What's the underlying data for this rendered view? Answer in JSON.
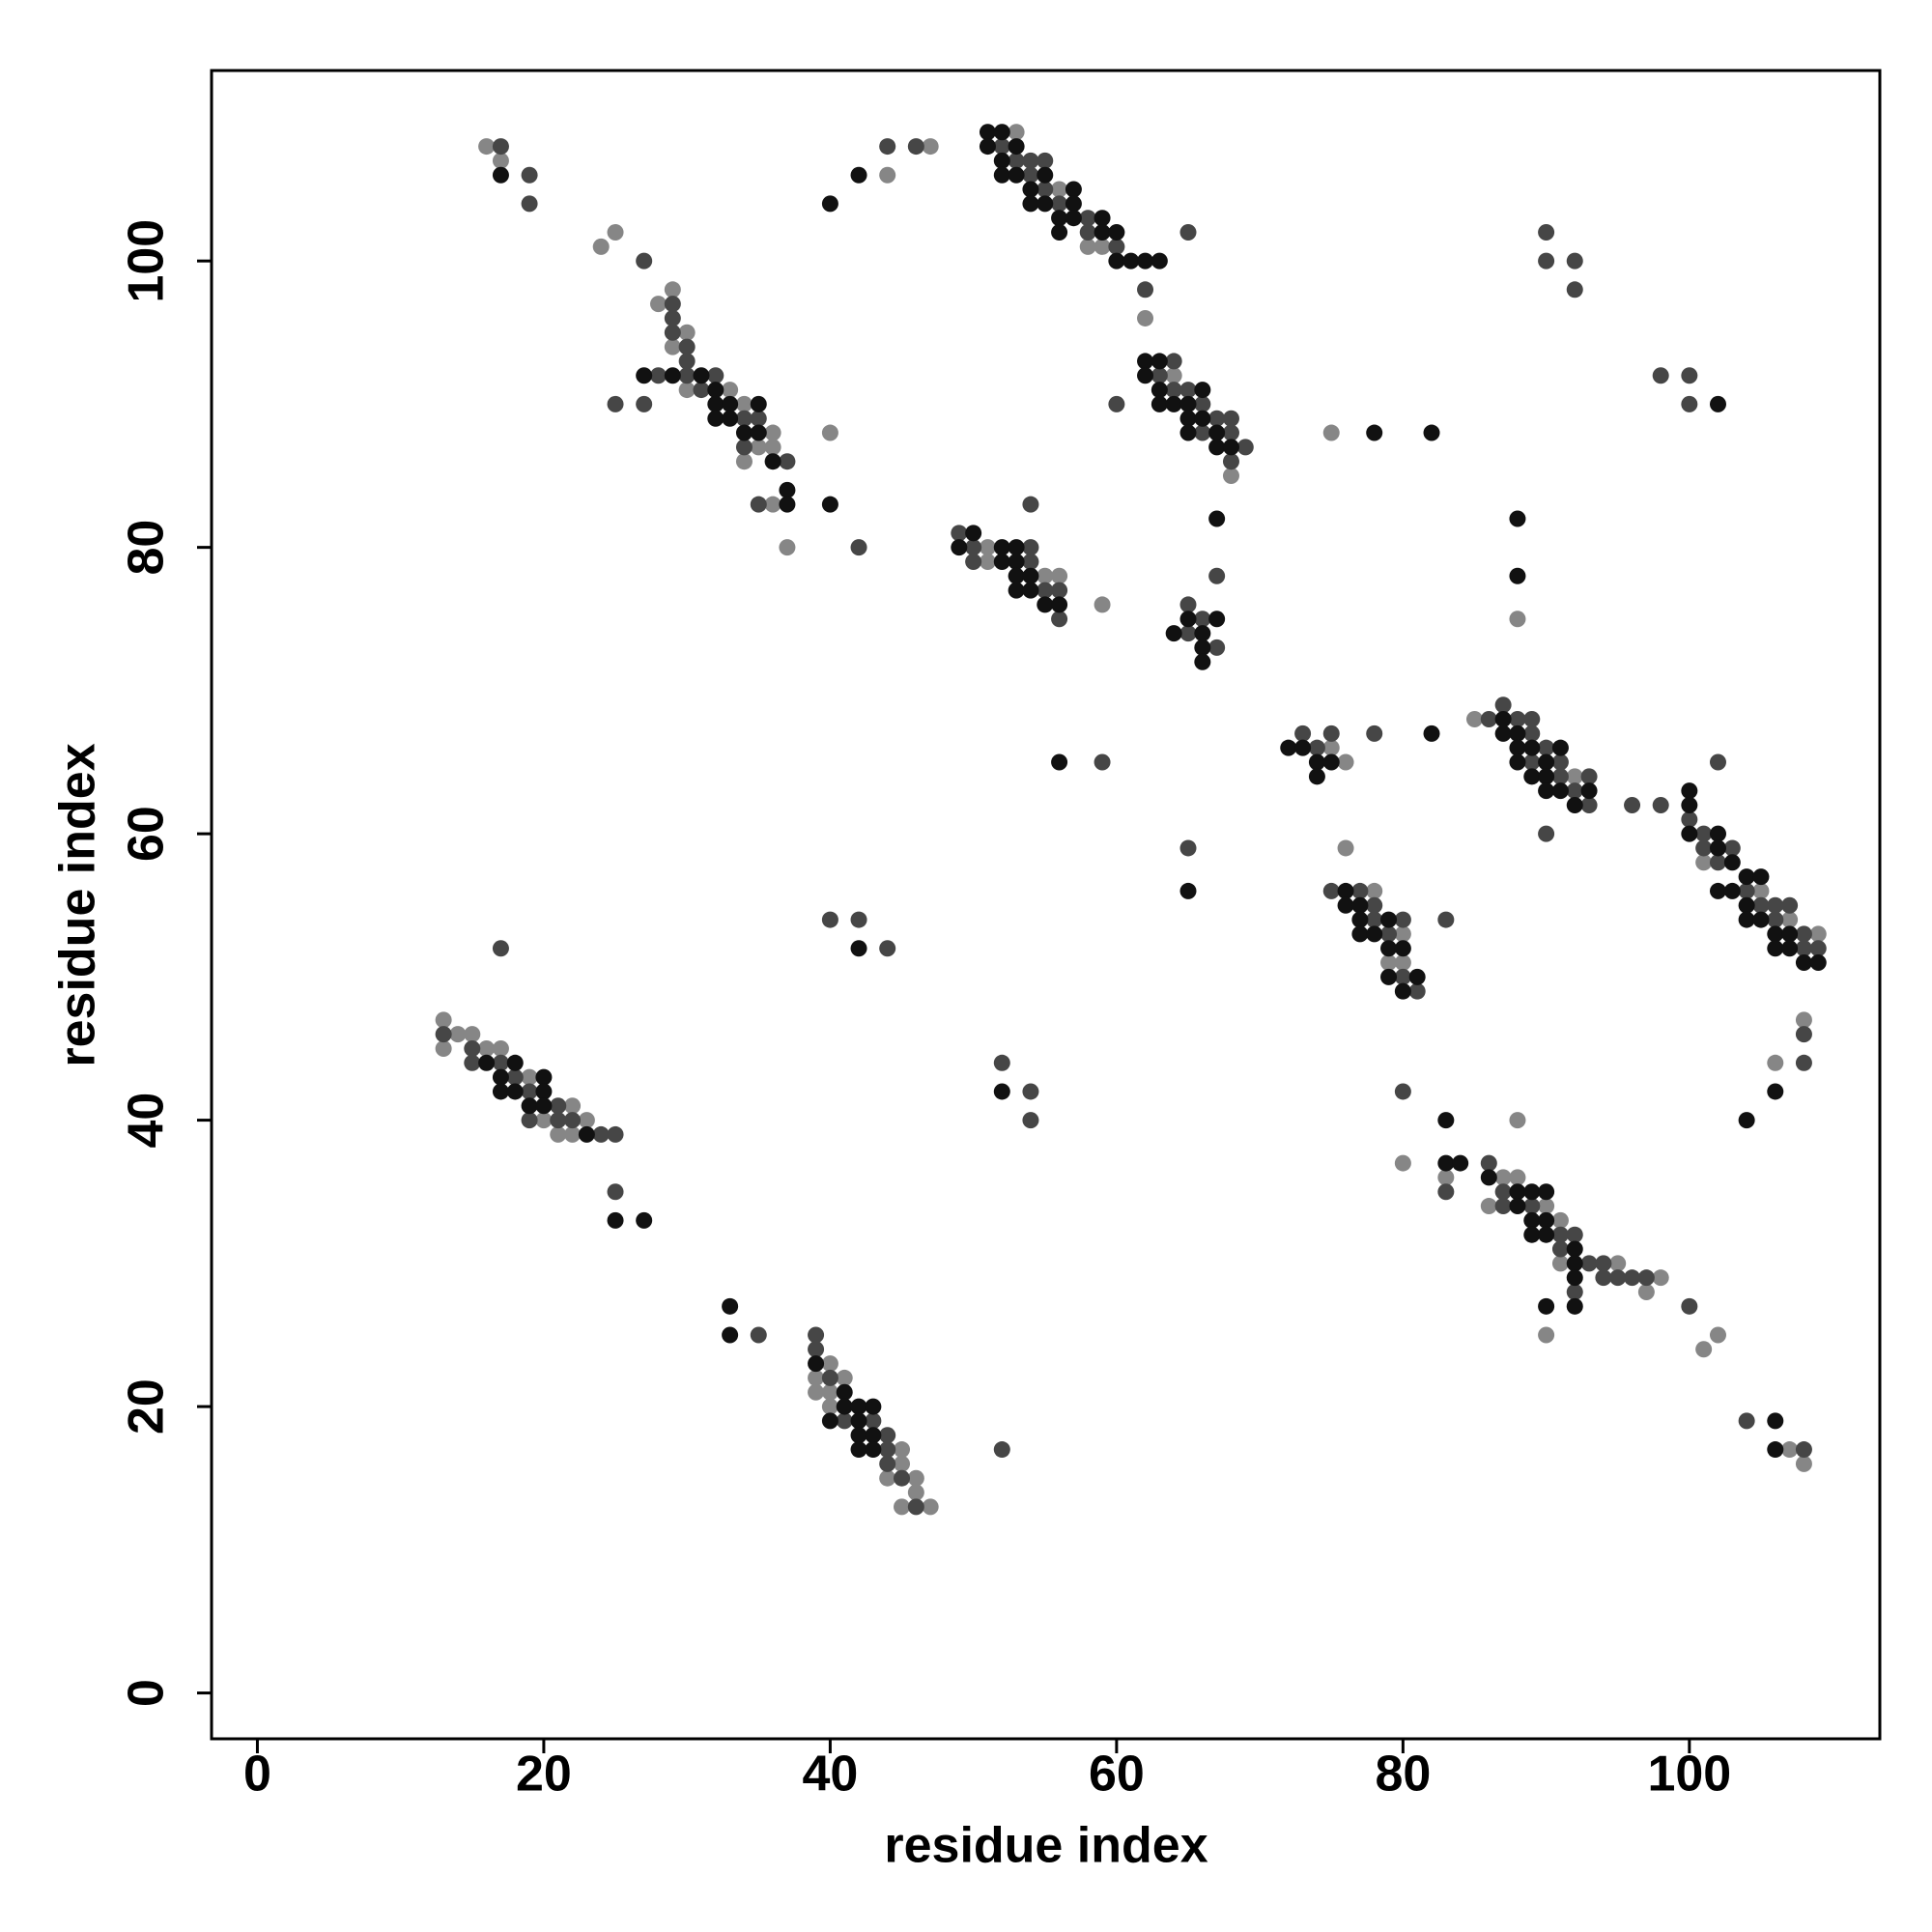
{
  "chart_data": {
    "type": "scatter",
    "x_label": "residue index",
    "y_label": "residue index",
    "xlim": [
      -3.2,
      113.3
    ],
    "ylim": [
      -3.2,
      113.3
    ],
    "xticks": [
      0,
      20,
      40,
      60,
      80,
      100
    ],
    "yticks": [
      0,
      20,
      40,
      60,
      80,
      100
    ],
    "grid": false,
    "series": [
      {
        "color": "#868686",
        "x": [
          16,
          17,
          24,
          25,
          28,
          29,
          30,
          29,
          30,
          33,
          34,
          36,
          35,
          36,
          34,
          36,
          37,
          40,
          44,
          47,
          53,
          56,
          58,
          59,
          62,
          64,
          68,
          75,
          51,
          51,
          55,
          56,
          59,
          75,
          76,
          85,
          92,
          101,
          105,
          107,
          109,
          106,
          108,
          76,
          78,
          80,
          79,
          80,
          13,
          14,
          15,
          13,
          16,
          17,
          19,
          22,
          20,
          23,
          21,
          22,
          40,
          39,
          41,
          39,
          40,
          40,
          45,
          45,
          44,
          46,
          46,
          45,
          47,
          88,
          80,
          83,
          87,
          88,
          86,
          90,
          91,
          91,
          95,
          98,
          97,
          90,
          101,
          102,
          107,
          108,
          88
        ],
        "y": [
          108,
          107,
          101,
          102,
          97,
          98,
          95,
          94,
          91,
          91,
          90,
          88,
          87,
          87,
          86,
          83,
          80,
          88,
          106,
          108,
          109,
          105,
          101,
          101,
          96,
          92,
          85,
          88,
          80,
          79,
          78,
          78,
          76,
          66,
          65,
          68,
          64,
          58,
          56,
          54,
          53,
          44,
          47,
          59,
          56,
          53,
          51,
          51,
          47,
          46,
          46,
          45,
          45,
          45,
          43,
          41,
          40,
          40,
          39,
          39,
          23,
          22,
          22,
          21,
          21,
          20,
          17,
          16,
          15,
          15,
          14,
          13,
          13,
          40,
          37,
          36,
          36,
          36,
          34,
          34,
          33,
          30,
          30,
          29,
          28,
          25,
          24,
          25,
          17,
          16,
          75
        ]
      },
      {
        "color": "#464646",
        "x": [
          17,
          19,
          19,
          27,
          29,
          29,
          29,
          30,
          30,
          28,
          30,
          32,
          31,
          25,
          27,
          34,
          35,
          34,
          37,
          35,
          42,
          44,
          46,
          52,
          53,
          54,
          55,
          54,
          55,
          56,
          58,
          58,
          60,
          65,
          62,
          64,
          63,
          64,
          65,
          66,
          60,
          67,
          68,
          66,
          68,
          69,
          68,
          49,
          50,
          54,
          50,
          54,
          55,
          56,
          56,
          54,
          65,
          67,
          66,
          65,
          67,
          73,
          74,
          75,
          78,
          59,
          86,
          87,
          88,
          89,
          89,
          90,
          89,
          91,
          91,
          93,
          92,
          93,
          90,
          96,
          98,
          100,
          102,
          101,
          101,
          103,
          102,
          104,
          105,
          106,
          107,
          106,
          108,
          108,
          109,
          108,
          108,
          75,
          77,
          78,
          78,
          80,
          79,
          80,
          81,
          83,
          65,
          13,
          15,
          15,
          17,
          18,
          19,
          21,
          19,
          21,
          22,
          24,
          25,
          25,
          17,
          40,
          42,
          44,
          52,
          54,
          54,
          35,
          39,
          39,
          40,
          41,
          43,
          44,
          44,
          44,
          45,
          46,
          52,
          80,
          83,
          86,
          87,
          87,
          89,
          91,
          92,
          91,
          93,
          94,
          94,
          95,
          96,
          97,
          92,
          100,
          104,
          108,
          90,
          90,
          92,
          92,
          98,
          100,
          100
        ],
        "y": [
          108,
          106,
          104,
          100,
          97,
          96,
          95,
          94,
          93,
          92,
          92,
          92,
          91,
          90,
          90,
          89,
          89,
          87,
          86,
          83,
          80,
          108,
          108,
          108,
          107,
          107,
          107,
          106,
          105,
          104,
          103,
          102,
          101,
          102,
          98,
          93,
          92,
          91,
          91,
          90,
          90,
          89,
          89,
          88,
          88,
          87,
          86,
          81,
          80,
          80,
          79,
          79,
          77,
          77,
          75,
          83,
          76,
          78,
          75,
          74,
          73,
          67,
          66,
          67,
          67,
          65,
          68,
          69,
          68,
          68,
          67,
          66,
          65,
          65,
          64,
          64,
          63,
          62,
          60,
          62,
          62,
          61,
          65,
          60,
          59,
          59,
          58,
          56,
          55,
          55,
          55,
          54,
          53,
          52,
          52,
          44,
          46,
          56,
          56,
          55,
          54,
          54,
          53,
          50,
          49,
          54,
          59,
          46,
          45,
          44,
          44,
          43,
          42,
          41,
          40,
          40,
          40,
          39,
          39,
          35,
          52,
          54,
          54,
          52,
          44,
          42,
          40,
          25,
          25,
          24,
          22,
          19,
          19,
          18,
          17,
          16,
          15,
          13,
          17,
          42,
          35,
          37,
          35,
          34,
          34,
          32,
          32,
          31,
          30,
          30,
          29,
          29,
          29,
          29,
          28,
          27,
          19,
          17,
          102,
          100,
          100,
          98,
          92,
          92,
          90
        ]
      },
      {
        "color": "#111111",
        "x": [
          17,
          42,
          40,
          27,
          29,
          31,
          32,
          32,
          33,
          35,
          32,
          33,
          34,
          35,
          36,
          37,
          37,
          40,
          51,
          52,
          51,
          53,
          52,
          52,
          53,
          55,
          54,
          57,
          54,
          55,
          57,
          56,
          57,
          59,
          56,
          59,
          60,
          60,
          61,
          62,
          63,
          62,
          63,
          62,
          63,
          66,
          63,
          64,
          65,
          65,
          66,
          65,
          67,
          67,
          68,
          78,
          82,
          67,
          50,
          49,
          52,
          53,
          52,
          53,
          53,
          54,
          53,
          54,
          55,
          56,
          64,
          65,
          67,
          66,
          66,
          66,
          72,
          73,
          74,
          75,
          74,
          82,
          56,
          87,
          87,
          88,
          88,
          89,
          91,
          88,
          90,
          89,
          90,
          90,
          91,
          93,
          92,
          100,
          100,
          100,
          102,
          102,
          103,
          104,
          105,
          102,
          103,
          104,
          104,
          105,
          106,
          107,
          106,
          107,
          108,
          109,
          106,
          104,
          76,
          76,
          77,
          77,
          79,
          77,
          78,
          79,
          80,
          79,
          81,
          80,
          65,
          16,
          18,
          17,
          20,
          17,
          18,
          20,
          19,
          20,
          23,
          25,
          27,
          42,
          52,
          33,
          33,
          39,
          41,
          41,
          42,
          43,
          40,
          42,
          42,
          43,
          42,
          43,
          83,
          83,
          84,
          86,
          88,
          89,
          90,
          88,
          89,
          90,
          89,
          90,
          92,
          92,
          92,
          92,
          90,
          106,
          106,
          102,
          88,
          88
        ],
        "y": [
          106,
          106,
          104,
          92,
          92,
          92,
          91,
          90,
          90,
          90,
          89,
          89,
          88,
          88,
          86,
          84,
          83,
          83,
          109,
          109,
          108,
          108,
          107,
          106,
          106,
          106,
          105,
          105,
          104,
          104,
          104,
          103,
          103,
          103,
          102,
          102,
          102,
          100,
          100,
          100,
          100,
          93,
          93,
          92,
          91,
          91,
          90,
          90,
          90,
          89,
          89,
          88,
          88,
          87,
          87,
          88,
          88,
          82,
          81,
          80,
          80,
          80,
          79,
          79,
          78,
          78,
          77,
          77,
          76,
          76,
          74,
          75,
          75,
          74,
          73,
          72,
          66,
          66,
          65,
          65,
          64,
          67,
          65,
          68,
          67,
          67,
          66,
          66,
          66,
          65,
          65,
          64,
          64,
          63,
          63,
          63,
          62,
          63,
          62,
          60,
          60,
          59,
          58,
          57,
          57,
          56,
          56,
          55,
          54,
          54,
          53,
          53,
          52,
          52,
          51,
          51,
          42,
          40,
          56,
          55,
          55,
          54,
          54,
          53,
          53,
          52,
          52,
          50,
          50,
          49,
          56,
          44,
          44,
          43,
          43,
          42,
          42,
          42,
          41,
          41,
          39,
          33,
          33,
          52,
          42,
          27,
          25,
          23,
          21,
          20,
          20,
          20,
          19,
          19,
          18,
          18,
          17,
          17,
          40,
          37,
          37,
          36,
          35,
          35,
          35,
          34,
          33,
          33,
          32,
          32,
          31,
          30,
          29,
          27,
          27,
          19,
          17,
          90,
          82,
          78
        ]
      }
    ]
  }
}
